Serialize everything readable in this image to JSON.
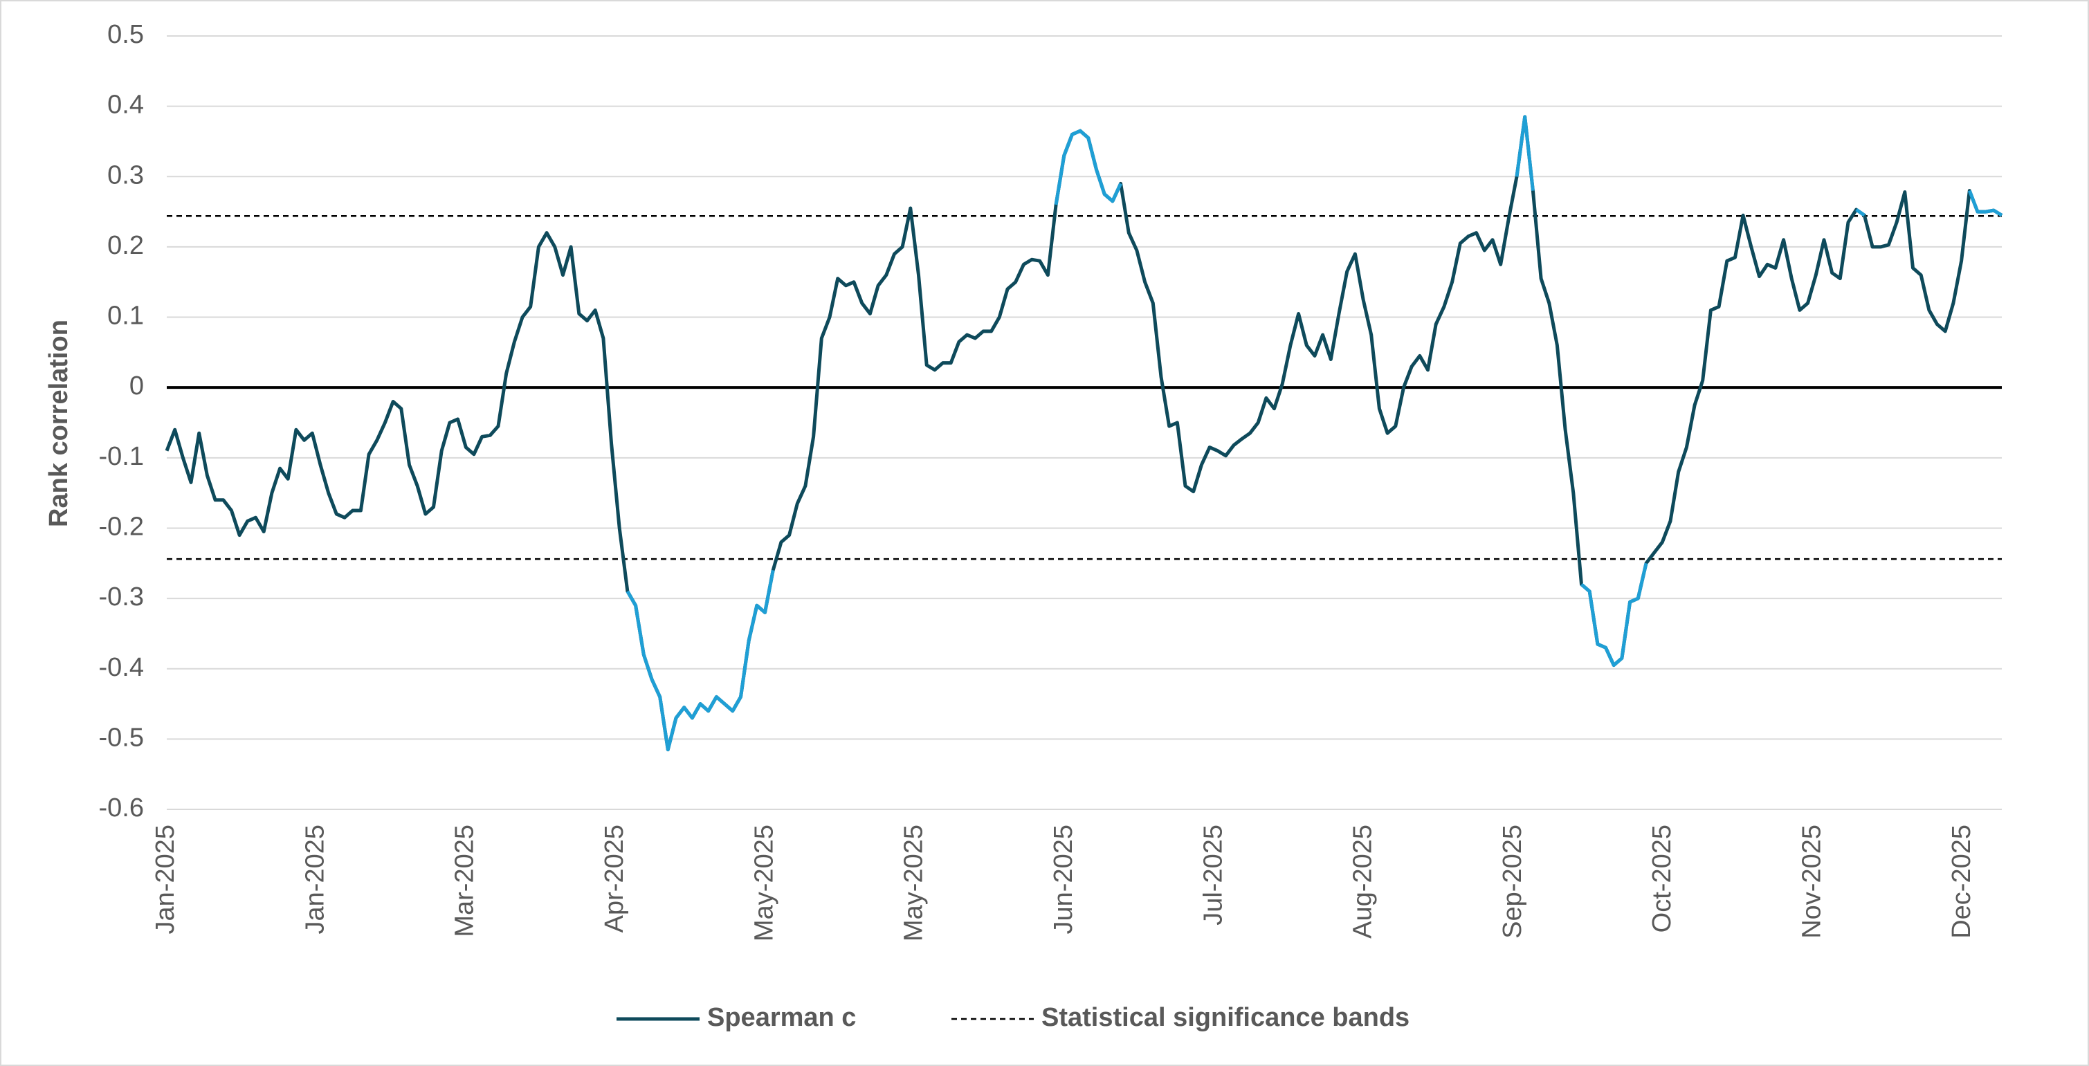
{
  "chart_data": {
    "type": "line",
    "y_label": "Rank correlation",
    "xtick_labels": [
      "Jan-2025",
      "Jan-2025",
      "Mar-2025",
      "Apr-2025",
      "May-2025",
      "May-2025",
      "Jun-2025",
      "Jul-2025",
      "Aug-2025",
      "Sep-2025",
      "Oct-2025",
      "Nov-2025",
      "Dec-2025"
    ],
    "ylim": [
      -0.6,
      0.5
    ],
    "yticks": [
      -0.6,
      -0.5,
      -0.4,
      -0.3,
      -0.2,
      -0.1,
      0,
      0.1,
      0.2,
      0.3,
      0.4,
      0.5
    ],
    "grid": true,
    "series": [
      {
        "name": "Spearman c",
        "color": "#0e4a5b",
        "highlight_color": "#1f9fd5",
        "values": [
          -0.09,
          -0.06,
          -0.1,
          -0.135,
          -0.065,
          -0.125,
          -0.16,
          -0.16,
          -0.175,
          -0.21,
          -0.19,
          -0.185,
          -0.205,
          -0.15,
          -0.115,
          -0.13,
          -0.06,
          -0.075,
          -0.065,
          -0.11,
          -0.15,
          -0.18,
          -0.185,
          -0.175,
          -0.175,
          -0.095,
          -0.075,
          -0.05,
          -0.02,
          -0.03,
          -0.11,
          -0.14,
          -0.18,
          -0.17,
          -0.09,
          -0.05,
          -0.045,
          -0.085,
          -0.095,
          -0.07,
          -0.068,
          -0.055,
          0.02,
          0.065,
          0.1,
          0.115,
          0.2,
          0.22,
          0.2,
          0.16,
          0.2,
          0.105,
          0.095,
          0.11,
          0.07,
          -0.08,
          -0.2,
          -0.29,
          -0.31,
          -0.38,
          -0.415,
          -0.44,
          -0.515,
          -0.47,
          -0.455,
          -0.47,
          -0.45,
          -0.46,
          -0.44,
          -0.45,
          -0.46,
          -0.44,
          -0.36,
          -0.31,
          -0.32,
          -0.26,
          -0.22,
          -0.21,
          -0.165,
          -0.14,
          -0.07,
          0.07,
          0.1,
          0.155,
          0.145,
          0.15,
          0.12,
          0.105,
          0.145,
          0.16,
          0.19,
          0.2,
          0.255,
          0.16,
          0.032,
          0.025,
          0.035,
          0.035,
          0.065,
          0.075,
          0.07,
          0.08,
          0.08,
          0.1,
          0.14,
          0.15,
          0.175,
          0.182,
          0.18,
          0.16,
          0.26,
          0.33,
          0.36,
          0.365,
          0.355,
          0.31,
          0.275,
          0.265,
          0.29,
          0.22,
          0.195,
          0.15,
          0.12,
          0.015,
          -0.055,
          -0.05,
          -0.14,
          -0.148,
          -0.11,
          -0.085,
          -0.09,
          -0.097,
          -0.082,
          -0.073,
          -0.065,
          -0.05,
          -0.015,
          -0.03,
          0.005,
          0.06,
          0.105,
          0.06,
          0.045,
          0.075,
          0.04,
          0.105,
          0.165,
          0.19,
          0.125,
          0.075,
          -0.03,
          -0.065,
          -0.055,
          0,
          0.03,
          0.045,
          0.025,
          0.09,
          0.115,
          0.15,
          0.205,
          0.215,
          0.22,
          0.195,
          0.21,
          0.175,
          0.24,
          0.3,
          0.385,
          0.28,
          0.155,
          0.12,
          0.06,
          -0.06,
          -0.15,
          -0.28,
          -0.29,
          -0.365,
          -0.37,
          -0.395,
          -0.385,
          -0.305,
          -0.3,
          -0.25,
          -0.235,
          -0.22,
          -0.19,
          -0.12,
          -0.085,
          -0.025,
          0.01,
          0.11,
          0.115,
          0.18,
          0.185,
          0.245,
          0.2,
          0.158,
          0.175,
          0.17,
          0.21,
          0.155,
          0.11,
          0.12,
          0.16,
          0.21,
          0.163,
          0.155,
          0.235,
          0.253,
          0.245,
          0.2,
          0.2,
          0.203,
          0.235,
          0.278,
          0.17,
          0.16,
          0.11,
          0.09,
          0.08,
          0.12,
          0.18,
          0.28,
          0.25,
          0.25,
          0.252,
          0.245
        ]
      }
    ],
    "bands": {
      "name": "Statistical significance bands",
      "color": "#000000",
      "values": [
        0.244,
        -0.244
      ]
    }
  }
}
